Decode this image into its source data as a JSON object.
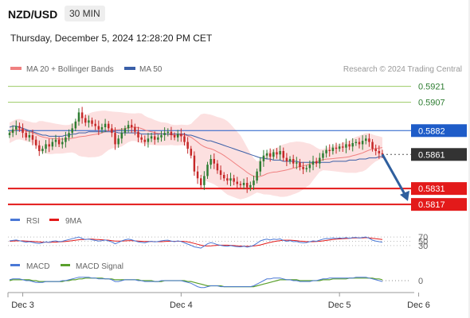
{
  "header": {
    "symbol": "NZD/USD",
    "timeframe": "30 MIN",
    "datetime": "Thursday, December 5, 2024 12:28:20 PM CET"
  },
  "colors": {
    "ma20": "#f08080",
    "band_fill": "#fbd8d8",
    "ma50": "#3a5fa8",
    "resistance": "#9ccc65",
    "pivot_line": "#1e5cc8",
    "support": "#e31a1a",
    "arrow": "#2f5f9e",
    "candle_up": "#2e7d32",
    "candle_down": "#c62828",
    "rsi": "#4a78d6",
    "rsi_ma": "#e31a1a",
    "macd": "#4a78d6",
    "macd_signal": "#5aa02c",
    "current_tag": "#333333"
  },
  "chart_data": [
    {
      "type": "candlestick",
      "legend": {
        "ma20": "MA 20 + Bollinger Bands",
        "ma50": "MA 50",
        "position": "top-left"
      },
      "credit": "Research © 2024 Trading Central",
      "ylim": [
        0.58115,
        0.59305
      ],
      "x_labels": [
        "Dec 3",
        "Dec 4",
        "Dec 5",
        "Dec 6"
      ],
      "x_label_index": [
        4,
        52,
        100,
        124
      ],
      "levels": [
        {
          "label": "0.5921",
          "value": 0.5921,
          "kind": "resistance"
        },
        {
          "label": "0.5907",
          "value": 0.5907,
          "kind": "resistance"
        },
        {
          "label": "0.5882",
          "value": 0.5882,
          "kind": "pivot"
        },
        {
          "label": "0.5861",
          "value": 0.5861,
          "kind": "current"
        },
        {
          "label": "0.5831",
          "value": 0.5831,
          "kind": "support"
        },
        {
          "label": "0.5817",
          "value": 0.5817,
          "kind": "support"
        }
      ],
      "close": [
        0.588,
        0.5883,
        0.5886,
        0.5884,
        0.588,
        0.5876,
        0.5878,
        0.5874,
        0.5869,
        0.5864,
        0.5866,
        0.587,
        0.5868,
        0.5872,
        0.5874,
        0.587,
        0.5872,
        0.5876,
        0.588,
        0.5884,
        0.589,
        0.5898,
        0.5893,
        0.5889,
        0.5891,
        0.5888,
        0.5886,
        0.5883,
        0.5885,
        0.5888,
        0.5884,
        0.588,
        0.587,
        0.5875,
        0.588,
        0.5884,
        0.5887,
        0.5885,
        0.5881,
        0.5876,
        0.5874,
        0.5872,
        0.5875,
        0.5877,
        0.5874,
        0.5876,
        0.5878,
        0.588,
        0.5881,
        0.5878,
        0.5876,
        0.5879,
        0.5877,
        0.5872,
        0.5866,
        0.586,
        0.5846,
        0.584,
        0.5834,
        0.5842,
        0.5852,
        0.5857,
        0.5853,
        0.5847,
        0.5843,
        0.584,
        0.5838,
        0.584,
        0.5837,
        0.5835,
        0.5834,
        0.5836,
        0.5832,
        0.5834,
        0.5838,
        0.5846,
        0.5855,
        0.586,
        0.5862,
        0.5859,
        0.5863,
        0.5861,
        0.5864,
        0.5858,
        0.5855,
        0.5857,
        0.5853,
        0.5854,
        0.585,
        0.5848,
        0.5849,
        0.5852,
        0.5855,
        0.5853,
        0.5858,
        0.5862,
        0.5865,
        0.5864,
        0.5867,
        0.5866,
        0.5868,
        0.5867,
        0.587,
        0.5868,
        0.5871,
        0.5872,
        0.587,
        0.5873,
        0.5875,
        0.5872,
        0.5866,
        0.5864,
        0.5862,
        0.5861
      ],
      "ma50": [
        0.5885,
        0.5886,
        0.5886,
        0.5885,
        0.5884,
        0.5883,
        0.5882,
        0.5881,
        0.588,
        0.5879,
        0.5878,
        0.5878,
        0.5877,
        0.5877,
        0.5877,
        0.5877,
        0.5877,
        0.5878,
        0.5878,
        0.5879,
        0.5879,
        0.588,
        0.588,
        0.588,
        0.5881,
        0.5881,
        0.5881,
        0.5881,
        0.5881,
        0.5881,
        0.5881,
        0.5881,
        0.5881,
        0.588,
        0.588,
        0.588,
        0.588,
        0.588,
        0.588,
        0.588,
        0.5879,
        0.5879,
        0.5879,
        0.5879,
        0.5879,
        0.5879,
        0.5879,
        0.5879,
        0.5879,
        0.5879,
        0.5879,
        0.5879,
        0.5879,
        0.5879,
        0.5878,
        0.5878,
        0.5877,
        0.5876,
        0.5875,
        0.5874,
        0.5873,
        0.5873,
        0.5872,
        0.5871,
        0.587,
        0.5869,
        0.5868,
        0.5867,
        0.5866,
        0.5865,
        0.5864,
        0.5863,
        0.5862,
        0.5861,
        0.586,
        0.5859,
        0.5858,
        0.5858,
        0.5857,
        0.5857,
        0.5856,
        0.5856,
        0.5856,
        0.5855,
        0.5855,
        0.5855,
        0.5855,
        0.5855,
        0.5854,
        0.5854,
        0.5854,
        0.5854,
        0.5854,
        0.5854,
        0.5854,
        0.5854,
        0.5854,
        0.5854,
        0.5855,
        0.5855,
        0.5855,
        0.5855,
        0.5855,
        0.5856,
        0.5856,
        0.5856,
        0.5857,
        0.5857,
        0.5857,
        0.5858,
        0.5858,
        0.5858,
        0.5859,
        0.5859
      ]
    },
    {
      "type": "line",
      "legend": {
        "rsi": "RSI",
        "ma": "9MA"
      },
      "ylim": [
        0,
        100
      ],
      "levels": [
        {
          "label": "70",
          "value": 70
        },
        {
          "label": "50",
          "value": 50
        },
        {
          "label": "30",
          "value": 30
        }
      ],
      "rsi": [
        52,
        54,
        56,
        53,
        49,
        46,
        48,
        45,
        42,
        40,
        43,
        47,
        45,
        50,
        52,
        48,
        50,
        54,
        58,
        62,
        66,
        70,
        63,
        58,
        60,
        57,
        54,
        51,
        53,
        56,
        52,
        47,
        38,
        45,
        52,
        57,
        60,
        57,
        52,
        47,
        45,
        43,
        47,
        50,
        47,
        49,
        52,
        54,
        55,
        51,
        48,
        52,
        49,
        43,
        37,
        31,
        24,
        21,
        18,
        28,
        38,
        44,
        40,
        34,
        31,
        28,
        27,
        30,
        27,
        25,
        24,
        27,
        23,
        26,
        31,
        41,
        52,
        57,
        60,
        56,
        60,
        58,
        61,
        54,
        50,
        53,
        48,
        49,
        45,
        43,
        44,
        48,
        52,
        50,
        55,
        60,
        63,
        62,
        65,
        63,
        65,
        64,
        67,
        64,
        67,
        68,
        65,
        68,
        70,
        64,
        55,
        51,
        48,
        46
      ],
      "ma": [
        50,
        51,
        52,
        52,
        52,
        51,
        50,
        49,
        48,
        47,
        46,
        46,
        45,
        46,
        46,
        47,
        48,
        49,
        51,
        53,
        55,
        57,
        58,
        59,
        60,
        60,
        59,
        58,
        57,
        56,
        55,
        53,
        51,
        51,
        51,
        52,
        53,
        53,
        52,
        51,
        50,
        49,
        49,
        49,
        48,
        48,
        48,
        49,
        50,
        50,
        50,
        50,
        50,
        49,
        47,
        44,
        40,
        36,
        32,
        29,
        28,
        29,
        30,
        31,
        32,
        32,
        32,
        31,
        30,
        29,
        28,
        27,
        27,
        27,
        28,
        30,
        33,
        37,
        41,
        45,
        48,
        51,
        53,
        55,
        55,
        55,
        54,
        53,
        51,
        50,
        48,
        48,
        48,
        49,
        50,
        52,
        54,
        56,
        58,
        60,
        61,
        62,
        63,
        64,
        65,
        66,
        66,
        66,
        67,
        66,
        64,
        62,
        60,
        58
      ]
    },
    {
      "type": "line",
      "legend": {
        "macd": "MACD",
        "signal": "MACD Signal"
      },
      "ylim": [
        -0.0012,
        0.0012
      ],
      "levels": [
        {
          "label": "0",
          "value": 0
        }
      ],
      "macd": [
        0.0001,
        0.0002,
        0.0002,
        0.0002,
        0.0001,
        0.0,
        0.0,
        -0.0001,
        -0.0002,
        -0.0002,
        -0.0002,
        -0.0001,
        -0.0001,
        -0.0001,
        -0.0001,
        -0.0001,
        0.0,
        0.0,
        0.0001,
        0.0002,
        0.0003,
        0.0004,
        0.0004,
        0.0004,
        0.0004,
        0.0003,
        0.0003,
        0.0002,
        0.0002,
        0.0002,
        0.0002,
        0.0001,
        -0.0001,
        -0.0001,
        0.0,
        0.0001,
        0.0001,
        0.0001,
        0.0001,
        0.0,
        0.0,
        -0.0001,
        -0.0001,
        -0.0001,
        -0.0001,
        -0.0001,
        0.0,
        0.0,
        0.0,
        0.0,
        0.0,
        0.0,
        0.0,
        -0.0001,
        -0.0002,
        -0.0003,
        -0.0005,
        -0.0007,
        -0.0008,
        -0.0008,
        -0.0007,
        -0.0006,
        -0.0006,
        -0.0006,
        -0.0007,
        -0.0007,
        -0.0007,
        -0.0007,
        -0.0007,
        -0.0007,
        -0.0007,
        -0.0007,
        -0.0007,
        -0.0007,
        -0.0006,
        -0.0004,
        -0.0002,
        0.0,
        0.0002,
        0.0002,
        0.0003,
        0.0003,
        0.0003,
        0.0002,
        0.0001,
        0.0001,
        0.0,
        0.0,
        -0.0001,
        -0.0001,
        -0.0001,
        -0.0001,
        0.0,
        0.0,
        0.0001,
        0.0002,
        0.0002,
        0.0003,
        0.0003,
        0.0003,
        0.0003,
        0.0003,
        0.0003,
        0.0003,
        0.0003,
        0.0004,
        0.0004,
        0.0004,
        0.0004,
        0.0003,
        0.0002,
        0.0001,
        0.0,
        -0.0001
      ],
      "signal": [
        0.0,
        0.0001,
        0.0001,
        0.0001,
        0.0001,
        0.0001,
        0.0001,
        0.0,
        0.0,
        -0.0001,
        -0.0001,
        -0.0001,
        -0.0001,
        -0.0001,
        -0.0001,
        -0.0001,
        -0.0001,
        0.0,
        0.0,
        0.0001,
        0.0001,
        0.0002,
        0.0002,
        0.0003,
        0.0003,
        0.0003,
        0.0003,
        0.0003,
        0.0003,
        0.0002,
        0.0002,
        0.0002,
        0.0001,
        0.0001,
        0.0001,
        0.0001,
        0.0001,
        0.0001,
        0.0001,
        0.0001,
        0.0,
        0.0,
        0.0,
        0.0,
        -0.0001,
        -0.0001,
        -0.0001,
        0.0,
        0.0,
        0.0,
        0.0,
        0.0,
        0.0,
        0.0,
        -0.0001,
        -0.0001,
        -0.0002,
        -0.0003,
        -0.0004,
        -0.0005,
        -0.0006,
        -0.0006,
        -0.0006,
        -0.0006,
        -0.0006,
        -0.0007,
        -0.0007,
        -0.0007,
        -0.0007,
        -0.0007,
        -0.0007,
        -0.0007,
        -0.0007,
        -0.0007,
        -0.0007,
        -0.0006,
        -0.0005,
        -0.0004,
        -0.0003,
        -0.0002,
        -0.0001,
        0.0,
        0.0001,
        0.0001,
        0.0001,
        0.0001,
        0.0001,
        0.0001,
        0.0,
        0.0,
        0.0,
        0.0,
        0.0,
        0.0,
        0.0,
        0.0001,
        0.0001,
        0.0001,
        0.0002,
        0.0002,
        0.0002,
        0.0002,
        0.0002,
        0.0003,
        0.0003,
        0.0003,
        0.0003,
        0.0003,
        0.0003,
        0.0003,
        0.0003,
        0.0002,
        0.0002,
        0.0001
      ]
    }
  ]
}
